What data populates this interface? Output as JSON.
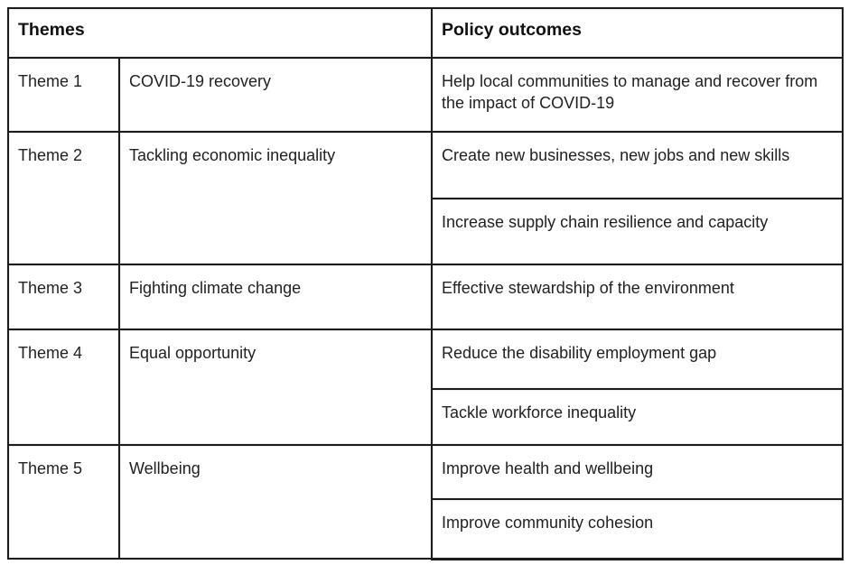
{
  "table": {
    "header": {
      "themes": "Themes",
      "policy_outcomes": "Policy outcomes"
    },
    "rows": [
      {
        "theme": "Theme 1",
        "name": "COVID-19 recovery",
        "outcomes": [
          "Help local communities to manage and recover from the impact of COVID-19"
        ]
      },
      {
        "theme": "Theme 2",
        "name": "Tackling economic inequality",
        "outcomes": [
          "Create new businesses, new jobs and new skills",
          "Increase supply chain resilience and capacity"
        ]
      },
      {
        "theme": "Theme 3",
        "name": "Fighting climate change",
        "outcomes": [
          "Effective stewardship of the environment"
        ]
      },
      {
        "theme": "Theme 4",
        "name": "Equal opportunity",
        "outcomes": [
          "Reduce the disability employment gap",
          "Tackle workforce inequality"
        ]
      },
      {
        "theme": "Theme 5",
        "name": "Wellbeing",
        "outcomes": [
          "Improve health and wellbeing",
          "Improve community cohesion"
        ]
      }
    ]
  },
  "colors": {
    "border": "#1c1c1c",
    "text": "#222222",
    "background": "#ffffff"
  }
}
